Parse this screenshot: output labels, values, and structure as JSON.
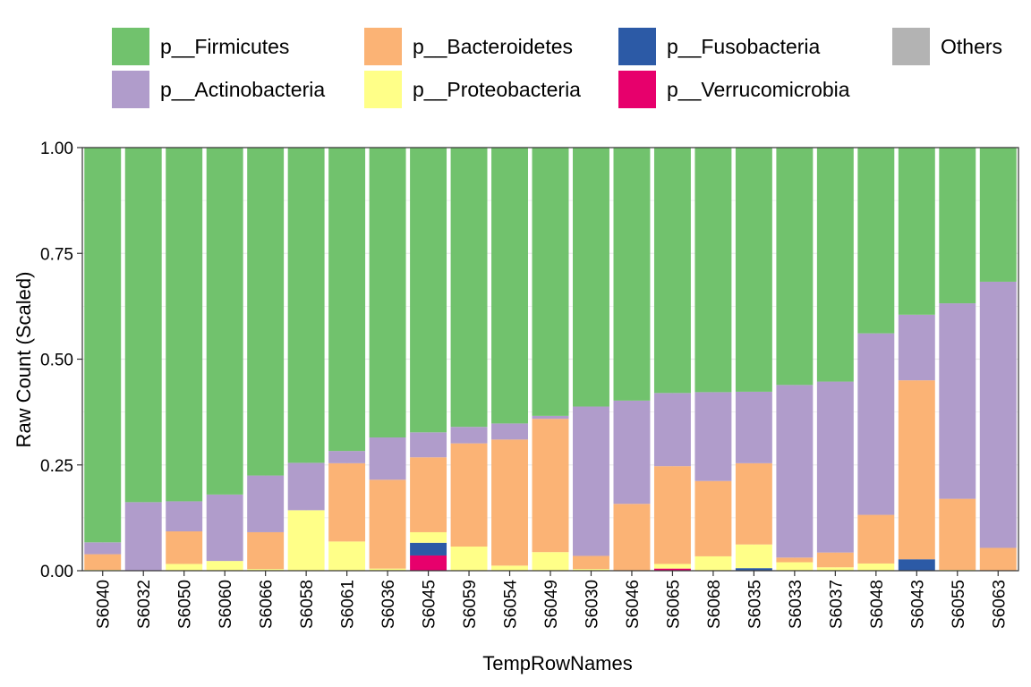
{
  "chart_data": {
    "type": "bar",
    "stacked": true,
    "title": "",
    "xlabel": "TempRowNames",
    "ylabel": "Raw Count (Scaled)",
    "ylim": [
      0,
      1
    ],
    "yticks": [
      "0.00",
      "0.25",
      "0.50",
      "0.75",
      "1.00"
    ],
    "grid": true,
    "legend_position": "top",
    "categories": [
      "S6040",
      "S6032",
      "S6050",
      "S6060",
      "S6066",
      "S6058",
      "S6061",
      "S6036",
      "S6045",
      "S6059",
      "S6054",
      "S6049",
      "S6030",
      "S6046",
      "S6065",
      "S6068",
      "S6035",
      "S6033",
      "S6037",
      "S6048",
      "S6043",
      "S6055",
      "S6063"
    ],
    "series": [
      {
        "name": "Others",
        "color": "#b3b3b3",
        "values": [
          0,
          0,
          0,
          0,
          0,
          0,
          0,
          0,
          0,
          0,
          0,
          0,
          0,
          0,
          0,
          0,
          0,
          0,
          0,
          0,
          0,
          0,
          0
        ]
      },
      {
        "name": "p__Verrucomicrobia",
        "color": "#e7006c",
        "values": [
          0,
          0,
          0,
          0,
          0,
          0,
          0,
          0,
          0.036,
          0,
          0,
          0,
          0,
          0,
          0.005,
          0,
          0,
          0,
          0,
          0,
          0,
          0,
          0
        ]
      },
      {
        "name": "p__Fusobacteria",
        "color": "#2c5aa6",
        "values": [
          0,
          0,
          0,
          0,
          0,
          0,
          0,
          0,
          0.03,
          0,
          0,
          0,
          0,
          0,
          0,
          0,
          0.006,
          0,
          0,
          0,
          0.027,
          0,
          0
        ]
      },
      {
        "name": "p__Proteobacteria",
        "color": "#ffff88",
        "values": [
          0.002,
          0,
          0.016,
          0.023,
          0.004,
          0.143,
          0.069,
          0.005,
          0.025,
          0.057,
          0.012,
          0.044,
          0.004,
          0,
          0.011,
          0.034,
          0.056,
          0.02,
          0.008,
          0.017,
          0,
          0.002,
          0
        ]
      },
      {
        "name": "p__Bacteroidetes",
        "color": "#fbb375",
        "values": [
          0.037,
          0,
          0.077,
          0,
          0.087,
          0,
          0.185,
          0.21,
          0.177,
          0.244,
          0.298,
          0.315,
          0.031,
          0.158,
          0.231,
          0.178,
          0.192,
          0.011,
          0.035,
          0.115,
          0.423,
          0.168,
          0.054
        ]
      },
      {
        "name": "p__Actinobacteria",
        "color": "#b09ccb",
        "values": [
          0.028,
          0.162,
          0.071,
          0.157,
          0.134,
          0.112,
          0.029,
          0.1,
          0.059,
          0.039,
          0.038,
          0.007,
          0.353,
          0.244,
          0.173,
          0.21,
          0.169,
          0.408,
          0.404,
          0.429,
          0.155,
          0.462,
          0.629
        ]
      },
      {
        "name": "p__Firmicutes",
        "color": "#71c26d",
        "values": [
          0.933,
          0.838,
          0.836,
          0.82,
          0.775,
          0.745,
          0.717,
          0.685,
          0.673,
          0.66,
          0.652,
          0.634,
          0.612,
          0.598,
          0.58,
          0.578,
          0.577,
          0.561,
          0.553,
          0.439,
          0.395,
          0.368,
          0.317
        ]
      }
    ],
    "legend": {
      "rows": [
        [
          "p__Firmicutes",
          "p__Bacteroidetes",
          "p__Fusobacteria",
          "Others"
        ],
        [
          "p__Actinobacteria",
          "p__Proteobacteria",
          "p__Verrucomicrobia"
        ]
      ]
    }
  }
}
